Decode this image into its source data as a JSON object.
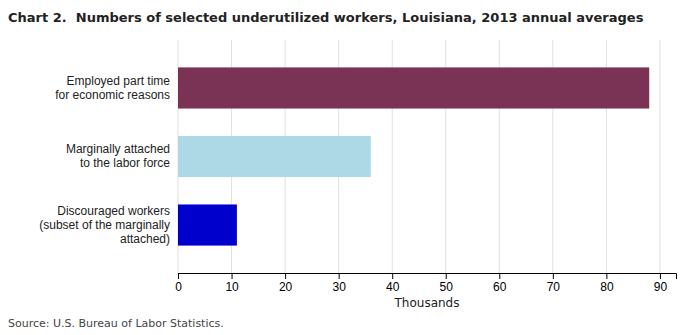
{
  "chart_data": {
    "type": "bar",
    "orientation": "horizontal",
    "title": "Chart 2.  Numbers of selected underutilized workers, Louisiana, 2013 annual averages",
    "categories": [
      "Discouraged workers\n(subset of the marginally\n    attached)",
      "Marginally attached\n  to the labor force",
      "Employed part time\nfor economic reasons"
    ],
    "values": [
      11,
      36,
      88
    ],
    "colors": [
      "#0000cc",
      "#add8e6",
      "#7b3355"
    ],
    "xlabel": "Thousands",
    "xlim": [
      0,
      93
    ],
    "xticks": [
      0,
      10,
      20,
      30,
      40,
      50,
      60,
      70,
      80,
      90
    ],
    "grid": true,
    "source": "Source: U.S. Bureau of Labor Statistics."
  }
}
